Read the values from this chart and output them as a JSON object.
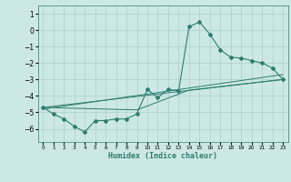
{
  "xlabel": "Humidex (Indice chaleur)",
  "bg_color": "#cce8e5",
  "line_color": "#2e7d6e",
  "grid_color": "#aacfcc",
  "xlim": [
    -0.5,
    23.5
  ],
  "ylim": [
    -6.8,
    1.5
  ],
  "yticks": [
    1,
    0,
    -1,
    -2,
    -3,
    -4,
    -5,
    -6
  ],
  "xticks": [
    0,
    1,
    2,
    3,
    4,
    5,
    6,
    7,
    8,
    9,
    10,
    11,
    12,
    13,
    14,
    15,
    16,
    17,
    18,
    19,
    20,
    21,
    22,
    23
  ],
  "series1_x": [
    0,
    1,
    2,
    3,
    4,
    5,
    6,
    7,
    8,
    9,
    10,
    11,
    12,
    13,
    14,
    15,
    16,
    17,
    18,
    19,
    20,
    21,
    22,
    23
  ],
  "series1_y": [
    -4.7,
    -5.1,
    -5.4,
    -5.85,
    -6.2,
    -5.5,
    -5.5,
    -5.4,
    -5.4,
    -5.1,
    -3.6,
    -4.1,
    -3.6,
    -3.7,
    0.2,
    0.5,
    -0.25,
    -1.2,
    -1.65,
    -1.7,
    -1.85,
    -2.0,
    -2.3,
    -3.0
  ],
  "series2_x": [
    0,
    23
  ],
  "series2_y": [
    -4.7,
    -3.0
  ],
  "series3_x": [
    0,
    23
  ],
  "series3_y": [
    -4.8,
    -2.7
  ],
  "series4_x": [
    0,
    9,
    14,
    23
  ],
  "series4_y": [
    -4.7,
    -4.85,
    -3.65,
    -3.0
  ]
}
